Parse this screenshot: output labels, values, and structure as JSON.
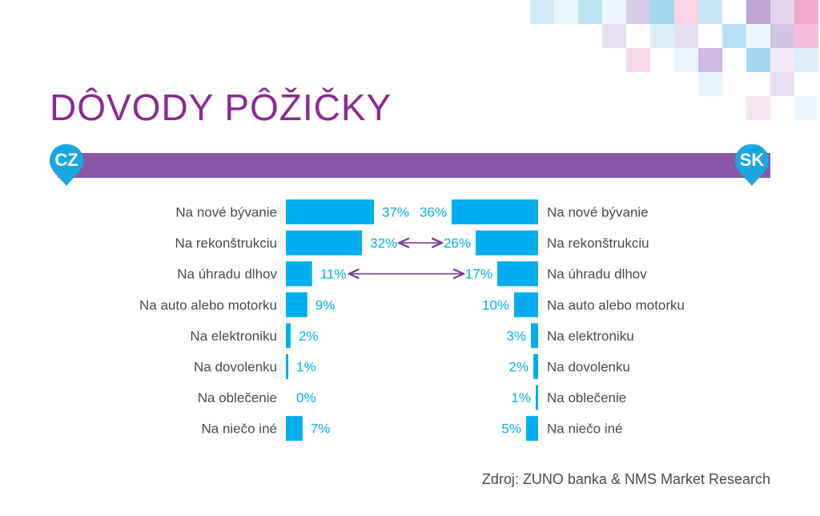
{
  "colors": {
    "title": "#8a2b8f",
    "band": "#8b58a8",
    "bar": "#00aeef",
    "value_text": "#00aeef",
    "label_text": "#4a4a4a",
    "arrow": "#7b3f9e",
    "pin": "#1ba6e0"
  },
  "header": {
    "title": "DÔVODY PÔŽIČKY"
  },
  "left_panel": {
    "flag": "CZ"
  },
  "right_panel": {
    "flag": "SK"
  },
  "footer": {
    "source": "Zdroj: ZUNO banka & NMS Market Research"
  },
  "chart_data": {
    "type": "bar",
    "orientation": "horizontal-butterfly",
    "title": "DÔVODY PÔŽIČKY",
    "unit": "%",
    "categories": [
      "Na nové bývanie",
      "Na rekonštrukciu",
      "Na úhradu dlhov",
      "Na auto alebo motorku",
      "Na elektroniku",
      "Na dovolenku",
      "Na oblečenie",
      "Na niečo iné"
    ],
    "series": [
      {
        "name": "CZ",
        "values": [
          37,
          32,
          11,
          9,
          2,
          1,
          0,
          7
        ],
        "labels": [
          "37%",
          "32%",
          "11%",
          "9%",
          "2%",
          "1%",
          "0%",
          "7%"
        ]
      },
      {
        "name": "SK",
        "values": [
          36,
          26,
          17,
          10,
          3,
          2,
          1,
          5
        ],
        "labels": [
          "36%",
          "26%",
          "17%",
          "10%",
          "3%",
          "2%",
          "1%",
          "5%"
        ]
      }
    ],
    "annotations": [
      {
        "type": "double-arrow",
        "between": "CZ-SK",
        "category": "Na rekonštrukciu"
      },
      {
        "type": "double-arrow",
        "between": "CZ-SK",
        "category": "Na úhradu dlhov"
      }
    ],
    "xlim": [
      0,
      37
    ],
    "grid": false,
    "legend": "none"
  }
}
